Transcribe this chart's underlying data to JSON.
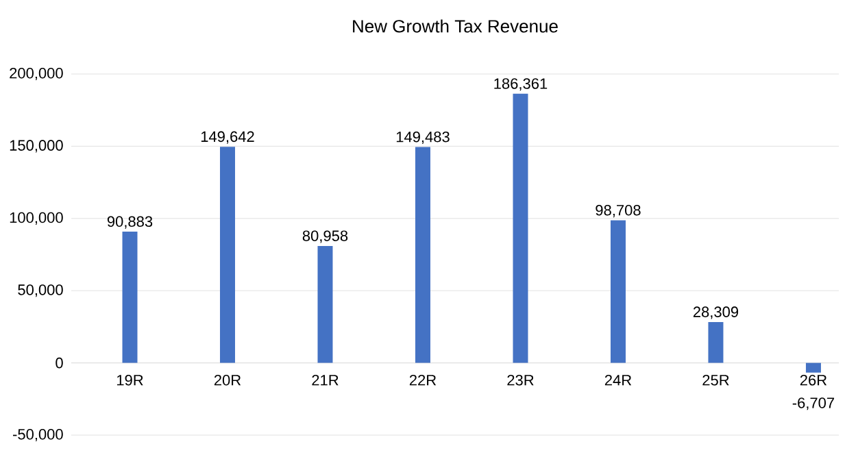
{
  "chart_data": {
    "type": "bar",
    "title": "New Growth Tax Revenue",
    "categories": [
      "19R",
      "20R",
      "21R",
      "22R",
      "23R",
      "24R",
      "25R",
      "26R"
    ],
    "values": [
      90883,
      149642,
      80958,
      149483,
      186361,
      98708,
      28309,
      -6707
    ],
    "color": "#4472c4",
    "ylim": [
      -50000,
      200000
    ],
    "yticks": [
      {
        "value": -50000,
        "label": "-50,000"
      },
      {
        "value": 0,
        "label": "0"
      },
      {
        "value": 50000,
        "label": "50,000"
      },
      {
        "value": 100000,
        "label": "100,000"
      },
      {
        "value": 150000,
        "label": "150,000"
      },
      {
        "value": 200000,
        "label": "200,000"
      }
    ],
    "value_labels": [
      "90,883",
      "149,642",
      "80,958",
      "149,483",
      "186,361",
      "98,708",
      "28,309",
      "-6,707"
    ],
    "grid": "y"
  }
}
